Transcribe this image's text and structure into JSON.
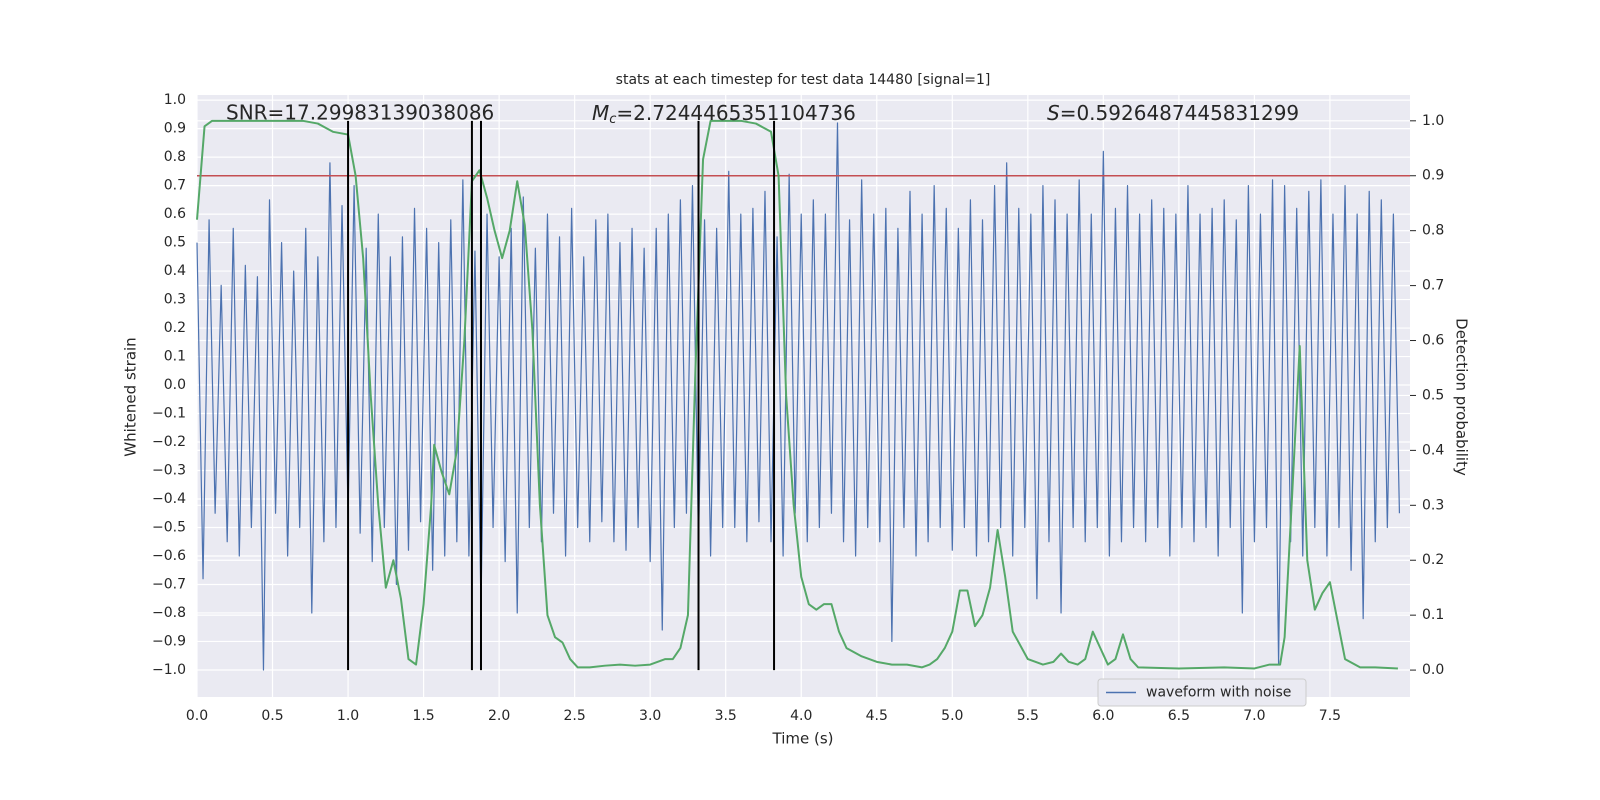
{
  "chart_data": {
    "type": "line",
    "title": "stats at each timestep for test data 14480 [signal=1]",
    "xlabel": "Time (s)",
    "ylabel": "Whitened strain",
    "y2label": "Detection probability",
    "xlim": [
      0,
      8.03
    ],
    "ylim": [
      -1.095,
      1.018
    ],
    "y2lim": [
      -0.049,
      1.047
    ],
    "grid": true,
    "legend": "lower right",
    "xticks": [
      {
        "value": 0,
        "label": "0.0"
      },
      {
        "value": 0.5,
        "label": "0.5"
      },
      {
        "value": 1,
        "label": "1.0"
      },
      {
        "value": 1.5,
        "label": "1.5"
      },
      {
        "value": 2,
        "label": "2.0"
      },
      {
        "value": 2.5,
        "label": "2.5"
      },
      {
        "value": 3,
        "label": "3.0"
      },
      {
        "value": 3.5,
        "label": "3.5"
      },
      {
        "value": 4,
        "label": "4.0"
      },
      {
        "value": 4.5,
        "label": "4.5"
      },
      {
        "value": 5,
        "label": "5.0"
      },
      {
        "value": 5.5,
        "label": "5.5"
      },
      {
        "value": 6,
        "label": "6.0"
      },
      {
        "value": 6.5,
        "label": "6.5"
      },
      {
        "value": 7,
        "label": "7.0"
      },
      {
        "value": 7.5,
        "label": "7.5"
      }
    ],
    "yticks": [
      {
        "value": 1,
        "label": "1.0"
      },
      0.9,
      0.8,
      0.7,
      0.6,
      0.5,
      0.4,
      0.3,
      0.2,
      0.1,
      {
        "value": 0,
        "label": "0.0"
      },
      {
        "value": -0.1,
        "label": "−0.1"
      },
      {
        "value": -0.2,
        "label": "−0.2"
      },
      {
        "value": -0.3,
        "label": "−0.3"
      },
      {
        "value": -0.4,
        "label": "−0.4"
      },
      {
        "value": -0.5,
        "label": "−0.5"
      },
      {
        "value": -0.6,
        "label": "−0.6"
      },
      {
        "value": -0.7,
        "label": "−0.7"
      },
      {
        "value": -0.8,
        "label": "−0.8"
      },
      {
        "value": -0.9,
        "label": "−0.9"
      },
      {
        "value": -1,
        "label": "−1.0"
      }
    ],
    "y2ticks": [
      {
        "value": 0,
        "label": "0.0"
      },
      0.1,
      0.2,
      0.3,
      0.4,
      0.5,
      0.6,
      0.7,
      0.8,
      0.9,
      {
        "value": 1,
        "label": "1.0"
      }
    ],
    "series": [
      {
        "name": "waveform with noise",
        "color": "#4c72b0",
        "x": [
          0,
          0.04,
          0.08,
          0.12,
          0.16,
          0.2,
          0.24,
          0.28,
          0.32,
          0.36,
          0.4,
          0.44,
          0.48,
          0.52,
          0.56,
          0.6,
          0.64,
          0.68,
          0.72,
          0.76,
          0.8,
          0.84,
          0.88,
          0.92,
          0.96,
          1,
          1.04,
          1.08,
          1.12,
          1.16,
          1.2,
          1.24,
          1.28,
          1.32,
          1.36,
          1.4,
          1.44,
          1.48,
          1.52,
          1.56,
          1.6,
          1.64,
          1.68,
          1.72,
          1.76,
          1.8,
          1.84,
          1.88,
          1.92,
          1.96,
          2,
          2.04,
          2.08,
          2.12,
          2.16,
          2.2,
          2.24,
          2.28,
          2.32,
          2.36,
          2.4,
          2.44,
          2.48,
          2.52,
          2.56,
          2.6,
          2.64,
          2.68,
          2.72,
          2.76,
          2.8,
          2.84,
          2.88,
          2.92,
          2.96,
          3,
          3.04,
          3.08,
          3.12,
          3.16,
          3.2,
          3.24,
          3.28,
          3.32,
          3.36,
          3.4,
          3.44,
          3.48,
          3.52,
          3.56,
          3.6,
          3.64,
          3.68,
          3.72,
          3.76,
          3.8,
          3.84,
          3.88,
          3.92,
          3.96,
          4,
          4.04,
          4.08,
          4.12,
          4.16,
          4.2,
          4.24,
          4.28,
          4.32,
          4.36,
          4.4,
          4.44,
          4.48,
          4.52,
          4.56,
          4.6,
          4.64,
          4.68,
          4.72,
          4.76,
          4.8,
          4.84,
          4.88,
          4.92,
          4.96,
          5,
          5.04,
          5.08,
          5.12,
          5.16,
          5.2,
          5.24,
          5.28,
          5.32,
          5.36,
          5.4,
          5.44,
          5.48,
          5.52,
          5.56,
          5.6,
          5.64,
          5.68,
          5.72,
          5.76,
          5.8,
          5.84,
          5.88,
          5.92,
          5.96,
          6,
          6.04,
          6.08,
          6.12,
          6.16,
          6.2,
          6.24,
          6.28,
          6.32,
          6.36,
          6.4,
          6.44,
          6.48,
          6.52,
          6.56,
          6.6,
          6.64,
          6.68,
          6.72,
          6.76,
          6.8,
          6.84,
          6.88,
          6.92,
          6.96,
          7,
          7.04,
          7.08,
          7.12,
          7.16,
          7.2,
          7.24,
          7.28,
          7.32,
          7.36,
          7.4,
          7.44,
          7.48,
          7.52,
          7.56,
          7.6,
          7.64,
          7.68,
          7.72,
          7.76,
          7.8,
          7.84,
          7.88,
          7.92,
          7.96
        ],
        "values": [
          0.5,
          -0.68,
          0.58,
          -0.45,
          0.35,
          -0.55,
          0.55,
          -0.6,
          0.42,
          -0.5,
          0.38,
          -1.0,
          0.65,
          -0.45,
          0.5,
          -0.6,
          0.4,
          -0.5,
          0.55,
          -0.8,
          0.45,
          -0.55,
          0.78,
          -0.5,
          0.63,
          -0.45,
          0.7,
          -0.52,
          0.48,
          -0.62,
          0.6,
          -0.5,
          0.45,
          -0.7,
          0.52,
          -0.58,
          0.62,
          -0.48,
          0.55,
          -0.65,
          0.5,
          -0.6,
          0.58,
          -0.55,
          0.72,
          -0.6,
          0.47,
          -0.78,
          0.6,
          -0.5,
          0.45,
          -0.62,
          0.55,
          -0.8,
          0.66,
          -0.5,
          0.48,
          -0.55,
          0.6,
          -0.45,
          0.52,
          -0.6,
          0.62,
          -0.5,
          0.45,
          -0.55,
          0.58,
          -0.48,
          0.6,
          -0.55,
          0.5,
          -0.58,
          0.55,
          -0.5,
          0.48,
          -0.62,
          0.55,
          -0.86,
          0.6,
          -0.5,
          0.65,
          -0.45,
          0.7,
          -0.55,
          0.58,
          -0.6,
          0.55,
          -0.5,
          0.75,
          -0.5,
          0.6,
          -0.55,
          0.62,
          -0.48,
          0.68,
          -0.55,
          0.52,
          -0.6,
          0.74,
          -0.45,
          0.6,
          -0.55,
          0.65,
          -0.5,
          0.6,
          -0.45,
          0.92,
          -0.55,
          0.58,
          -0.6,
          0.72,
          -0.5,
          0.6,
          -0.55,
          0.62,
          -0.9,
          0.55,
          -0.5,
          0.68,
          -0.6,
          0.6,
          -0.55,
          0.7,
          -0.5,
          0.62,
          -0.58,
          0.55,
          -0.5,
          0.65,
          -0.6,
          0.58,
          -0.55,
          0.7,
          -0.5,
          0.78,
          -0.6,
          0.62,
          -0.5,
          0.6,
          -0.75,
          0.7,
          -0.55,
          0.65,
          -0.8,
          0.6,
          -0.5,
          0.72,
          -0.55,
          0.6,
          -0.5,
          0.82,
          -0.6,
          0.62,
          -0.55,
          0.7,
          -0.5,
          0.6,
          -0.55,
          0.65,
          -0.5,
          0.62,
          -0.6,
          0.6,
          -0.5,
          0.7,
          -0.55,
          0.6,
          -0.5,
          0.62,
          -0.6,
          0.65,
          -0.5,
          0.58,
          -0.8,
          0.7,
          -0.55,
          0.6,
          -0.5,
          0.72,
          -0.98,
          0.7,
          -0.55,
          0.62,
          -0.6,
          0.68,
          -0.5,
          0.72,
          -0.6,
          0.6,
          -0.5,
          0.7,
          -0.65,
          0.6,
          -0.82,
          0.68,
          -0.55,
          0.65,
          -0.5,
          0.6,
          -0.45
        ]
      },
      {
        "color": "#55a868",
        "axis": "y2",
        "x": [
          0,
          0.05,
          0.1,
          0.3,
          0.5,
          0.7,
          0.8,
          0.9,
          1.0,
          1.05,
          1.1,
          1.15,
          1.2,
          1.25,
          1.3,
          1.35,
          1.4,
          1.45,
          1.5,
          1.55,
          1.57,
          1.62,
          1.67,
          1.72,
          1.77,
          1.82,
          1.87,
          1.92,
          1.97,
          2.02,
          2.07,
          2.12,
          2.17,
          2.22,
          2.27,
          2.32,
          2.37,
          2.42,
          2.47,
          2.52,
          2.6,
          2.7,
          2.8,
          2.9,
          3.0,
          3.05,
          3.1,
          3.15,
          3.2,
          3.25,
          3.3,
          3.35,
          3.4,
          3.5,
          3.6,
          3.7,
          3.8,
          3.85,
          3.9,
          3.95,
          4.0,
          4.05,
          4.1,
          4.15,
          4.2,
          4.25,
          4.3,
          4.4,
          4.5,
          4.6,
          4.7,
          4.8,
          4.85,
          4.9,
          4.95,
          5.0,
          5.05,
          5.1,
          5.15,
          5.2,
          5.25,
          5.3,
          5.35,
          5.4,
          5.5,
          5.6,
          5.67,
          5.72,
          5.77,
          5.83,
          5.88,
          5.93,
          5.98,
          6.03,
          6.08,
          6.13,
          6.18,
          6.23,
          6.5,
          6.8,
          7.0,
          7.1,
          7.17,
          7.2,
          7.25,
          7.3,
          7.35,
          7.4,
          7.45,
          7.5,
          7.55,
          7.6,
          7.7,
          7.8,
          7.95
        ],
        "values": [
          0.82,
          0.99,
          1.0,
          1.0,
          1.0,
          1.0,
          0.995,
          0.98,
          0.975,
          0.9,
          0.75,
          0.5,
          0.3,
          0.15,
          0.2,
          0.13,
          0.02,
          0.01,
          0.12,
          0.3,
          0.41,
          0.36,
          0.32,
          0.4,
          0.6,
          0.89,
          0.91,
          0.86,
          0.8,
          0.75,
          0.8,
          0.89,
          0.81,
          0.62,
          0.3,
          0.1,
          0.06,
          0.05,
          0.02,
          0.005,
          0.005,
          0.008,
          0.01,
          0.008,
          0.01,
          0.015,
          0.02,
          0.02,
          0.04,
          0.1,
          0.55,
          0.93,
          1.0,
          1.0,
          1.0,
          0.995,
          0.98,
          0.9,
          0.5,
          0.3,
          0.17,
          0.12,
          0.11,
          0.12,
          0.12,
          0.07,
          0.04,
          0.025,
          0.015,
          0.01,
          0.01,
          0.005,
          0.01,
          0.02,
          0.04,
          0.07,
          0.145,
          0.145,
          0.08,
          0.1,
          0.15,
          0.255,
          0.17,
          0.07,
          0.02,
          0.01,
          0.015,
          0.03,
          0.015,
          0.01,
          0.02,
          0.07,
          0.04,
          0.01,
          0.02,
          0.065,
          0.02,
          0.005,
          0.003,
          0.005,
          0.003,
          0.01,
          0.01,
          0.06,
          0.32,
          0.59,
          0.2,
          0.11,
          0.14,
          0.16,
          0.09,
          0.02,
          0.005,
          0.005,
          0.003
        ]
      }
    ],
    "vlines": {
      "color": "#000000",
      "axis": "y2",
      "y2range": [
        0,
        1
      ],
      "x": [
        1.0,
        1.82,
        1.88,
        3.32,
        3.82
      ]
    },
    "hline": {
      "color": "#c44e52",
      "axis": "y2",
      "value": 0.9
    },
    "annotations": [
      {
        "text": "SNR=17.29983139038086"
      },
      {
        "symbol": "M",
        "subscript": "c",
        "text": "=2.7244465351104736"
      },
      {
        "symbol": "S",
        "text": "=0.5926487445831299"
      }
    ]
  }
}
